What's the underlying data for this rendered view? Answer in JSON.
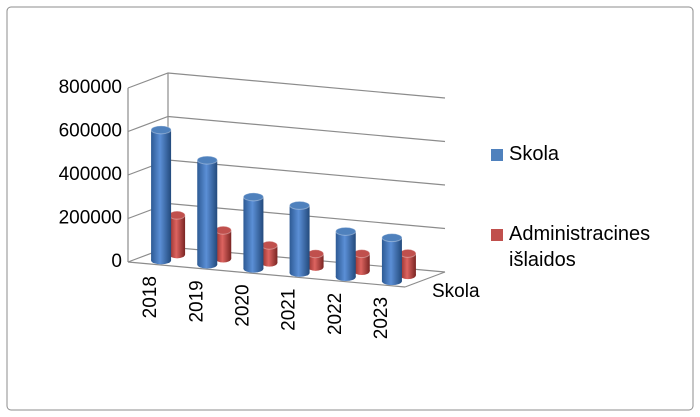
{
  "chart_data": {
    "type": "bar3d",
    "categories": [
      "2018",
      "2019",
      "2020",
      "2021",
      "2022",
      "2023"
    ],
    "series": [
      {
        "name": "Skola",
        "color": "#4f81bd",
        "values": [
          600000,
          480000,
          330000,
          310000,
          210000,
          200000
        ]
      },
      {
        "name": "Administracines išlaidos",
        "color": "#c0504d",
        "values": [
          180000,
          130000,
          80000,
          60000,
          80000,
          100000
        ]
      }
    ],
    "depth_label": "Skola",
    "ylim": [
      0,
      800000
    ],
    "yticks": [
      0,
      200000,
      400000,
      600000,
      800000
    ],
    "grid": true,
    "legend": "right"
  }
}
